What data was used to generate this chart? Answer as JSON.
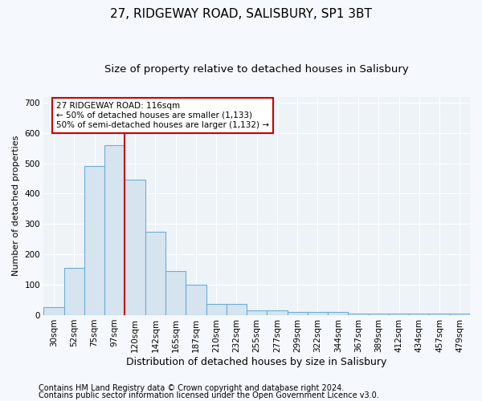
{
  "title": "27, RIDGEWAY ROAD, SALISBURY, SP1 3BT",
  "subtitle": "Size of property relative to detached houses in Salisbury",
  "xlabel": "Distribution of detached houses by size in Salisbury",
  "ylabel": "Number of detached properties",
  "bar_labels": [
    "30sqm",
    "52sqm",
    "75sqm",
    "97sqm",
    "120sqm",
    "142sqm",
    "165sqm",
    "187sqm",
    "210sqm",
    "232sqm",
    "255sqm",
    "277sqm",
    "299sqm",
    "322sqm",
    "344sqm",
    "367sqm",
    "389sqm",
    "412sqm",
    "434sqm",
    "457sqm",
    "479sqm"
  ],
  "bar_values": [
    25,
    155,
    490,
    560,
    445,
    275,
    145,
    100,
    35,
    35,
    15,
    15,
    10,
    10,
    10,
    5,
    5,
    5,
    5,
    5,
    5
  ],
  "bar_color": "#d6e4f0",
  "bar_edge_color": "#6aaed6",
  "vline_color": "#cc0000",
  "annotation_text": "27 RIDGEWAY ROAD: 116sqm\n← 50% of detached houses are smaller (1,133)\n50% of semi-detached houses are larger (1,132) →",
  "annotation_box_color": "white",
  "annotation_box_edge": "#cc0000",
  "ylim": [
    0,
    720
  ],
  "yticks": [
    0,
    100,
    200,
    300,
    400,
    500,
    600,
    700
  ],
  "footer_line1": "Contains HM Land Registry data © Crown copyright and database right 2024.",
  "footer_line2": "Contains public sector information licensed under the Open Government Licence v3.0.",
  "bg_color": "#f5f8fc",
  "plot_bg_color": "#eef3f8",
  "grid_color": "white",
  "title_fontsize": 11,
  "subtitle_fontsize": 9.5,
  "xlabel_fontsize": 9,
  "ylabel_fontsize": 8,
  "tick_fontsize": 7.5,
  "footer_fontsize": 7
}
